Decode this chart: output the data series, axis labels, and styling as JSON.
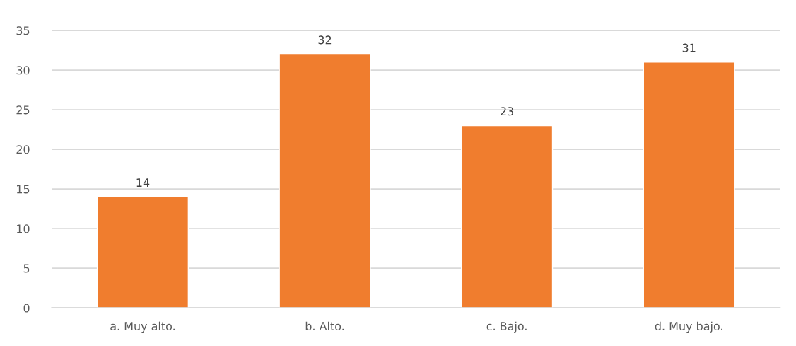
{
  "chart_data": {
    "type": "bar",
    "categories": [
      "a. Muy alto.",
      "b. Alto.",
      "c. Bajo.",
      "d. Muy bajo."
    ],
    "values": [
      14,
      32,
      23,
      31
    ],
    "color": "#f07d2e",
    "ylim": [
      0,
      35
    ],
    "yticks": [
      0,
      5,
      10,
      15,
      20,
      25,
      30,
      35
    ],
    "grid": "y",
    "data_labels": true
  }
}
